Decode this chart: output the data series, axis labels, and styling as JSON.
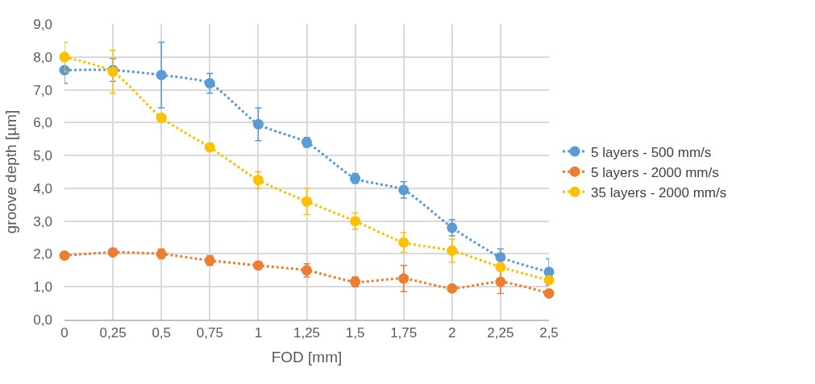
{
  "chart_data": {
    "type": "line",
    "xlabel": "FOD [mm]",
    "ylabel": "groove depth [µm]",
    "categories": [
      "0",
      "0,25",
      "0,5",
      "0,75",
      "1",
      "1,25",
      "1,5",
      "1,75",
      "2",
      "2,25",
      "2,5"
    ],
    "series": [
      {
        "name": "5 layers - 500 mm/s",
        "color": "#5b9bd5",
        "values": [
          7.6,
          7.6,
          7.45,
          7.2,
          5.95,
          5.4,
          4.3,
          3.95,
          2.8,
          1.9,
          1.45
        ],
        "errors": [
          0.4,
          0.35,
          1.0,
          0.3,
          0.5,
          0.15,
          0.15,
          0.25,
          0.25,
          0.25,
          0.4
        ]
      },
      {
        "name": "5 layers - 2000 mm/s",
        "color": "#ed7d31",
        "values": [
          1.95,
          2.05,
          2.0,
          1.8,
          1.65,
          1.5,
          1.15,
          1.25,
          0.95,
          1.15,
          0.8
        ],
        "errors": [
          null,
          null,
          0.15,
          0.15,
          null,
          0.2,
          0.15,
          0.4,
          null,
          0.35,
          null
        ]
      },
      {
        "name": "35 layers - 2000 mm/s",
        "color": "#ffc000",
        "values": [
          8.0,
          7.55,
          6.15,
          5.25,
          4.25,
          3.6,
          3.0,
          2.35,
          2.1,
          1.6,
          1.2
        ],
        "errors": [
          0.45,
          0.65,
          null,
          null,
          0.25,
          0.4,
          0.25,
          0.3,
          0.35,
          null,
          null
        ]
      }
    ],
    "ylim": [
      0,
      9
    ],
    "yticks": [
      {
        "value": 0,
        "label": "0,0"
      },
      {
        "value": 1,
        "label": "1,0"
      },
      {
        "value": 2,
        "label": "2,0"
      },
      {
        "value": 3,
        "label": "3,0"
      },
      {
        "value": 4,
        "label": "4,0"
      },
      {
        "value": 5,
        "label": "5,0"
      },
      {
        "value": 6,
        "label": "6,0"
      },
      {
        "value": 7,
        "label": "7,0"
      },
      {
        "value": 8,
        "label": "8,0"
      },
      {
        "value": 9,
        "label": "9,0"
      }
    ],
    "grid": true,
    "legend": "right",
    "marker": "circle",
    "line_style": "dotted"
  }
}
